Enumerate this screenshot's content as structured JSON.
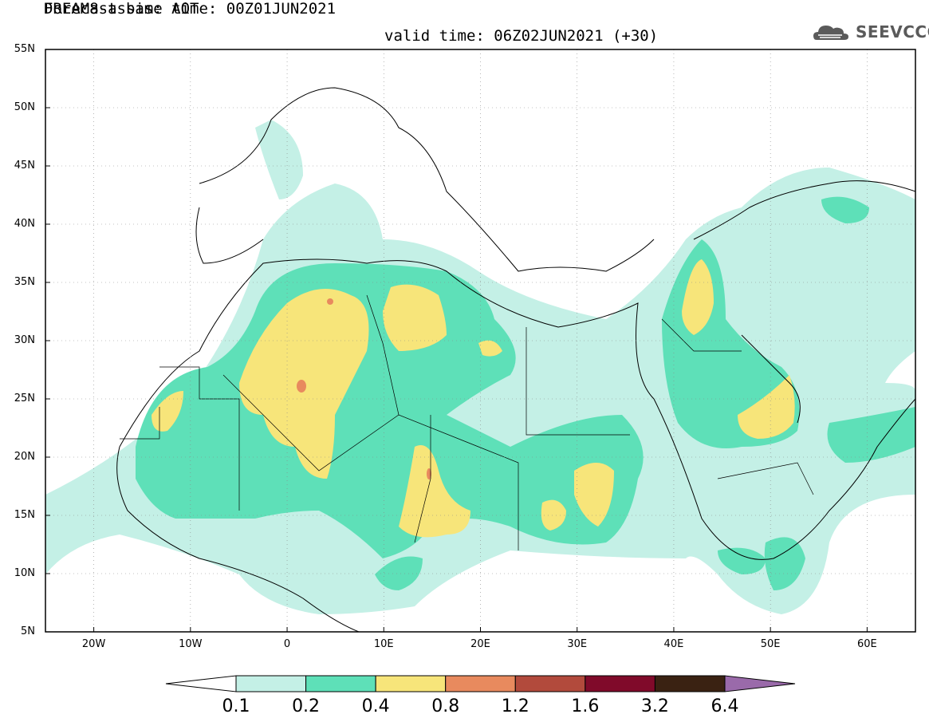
{
  "header": {
    "title_line1": "DREAM8-assim: AOT",
    "title_line2": "Forecast base time: 00Z01JUN2021",
    "valid_time": "valid time: 06Z02JUN2021 (+30)",
    "logo_text": "SEEVCCC",
    "logo_icon": "cloud-logo-icon"
  },
  "map": {
    "latitude_labels": [
      "55N",
      "50N",
      "45N",
      "40N",
      "35N",
      "30N",
      "25N",
      "20N",
      "15N",
      "10N",
      "5N"
    ],
    "longitude_labels": [
      "20W",
      "10W",
      "0",
      "10E",
      "20E",
      "30E",
      "40E",
      "50E",
      "60E"
    ],
    "extent": {
      "lon_min": -25,
      "lon_max": 65,
      "lat_min": 5,
      "lat_max": 55
    },
    "grid": "dotted"
  },
  "colorbar": {
    "labels": [
      "0.1",
      "0.2",
      "0.4",
      "0.8",
      "1.2",
      "1.6",
      "3.2",
      "6.4"
    ],
    "colors": {
      "under": "#ffffff",
      "bins": [
        "#c4f0e6",
        "#5ee0b8",
        "#f7e57a",
        "#e88a5e",
        "#b24a3c",
        "#800a2a",
        "#3a2212"
      ],
      "over": "#9a6aaa"
    }
  }
}
